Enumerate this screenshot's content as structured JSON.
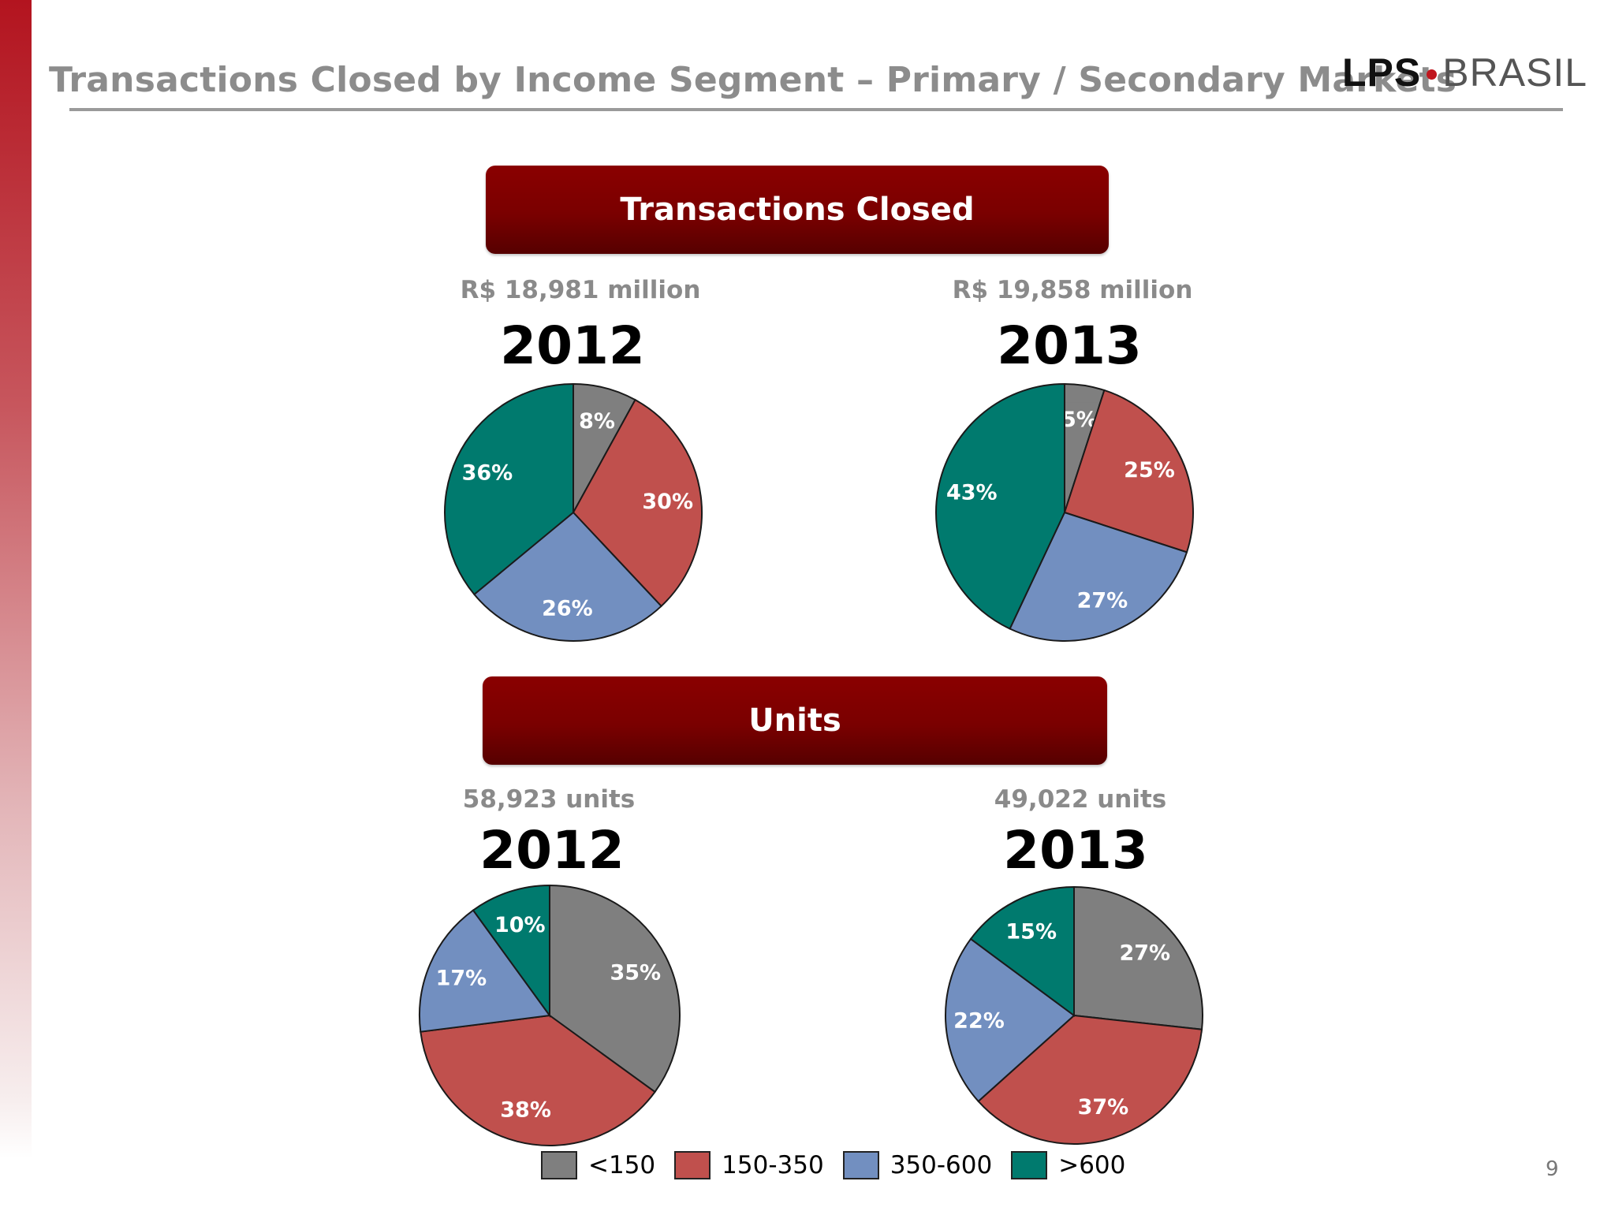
{
  "slide": {
    "title": "Transactions Closed by Income Segment – Primary / Secondary Markets",
    "logo": {
      "lps": "LPS",
      "brasil": "BRASIL",
      "accent": "#c0161e"
    },
    "page_number": "9"
  },
  "sections": {
    "transactions": {
      "banner": "Transactions Closed",
      "left_total": "R$ 18,981 million",
      "left_year": "2012",
      "right_total": "R$ 19,858 million",
      "right_year": "2013"
    },
    "units": {
      "banner": "Units",
      "left_total": "58,923 units",
      "left_year": "2012",
      "right_total": "49,022 units",
      "right_year": "2013"
    }
  },
  "legend": [
    {
      "label": "<150",
      "color": "#7f7f7f"
    },
    {
      "label": "150-350",
      "color": "#c0504d"
    },
    {
      "label": "350-600",
      "color": "#728fc0"
    },
    {
      "label": ">600",
      "color": "#007a6e"
    }
  ],
  "chart_data": [
    {
      "type": "pie",
      "title": "2012",
      "subtitle": "R$ 18,981 million",
      "categories": [
        "<150",
        "150-350",
        "350-600",
        ">600"
      ],
      "values": [
        8,
        30,
        26,
        36
      ],
      "labels": [
        "8%",
        "30%",
        "26%",
        "36%"
      ]
    },
    {
      "type": "pie",
      "title": "2013",
      "subtitle": "R$ 19,858 million",
      "categories": [
        "<150",
        "150-350",
        "350-600",
        ">600"
      ],
      "values": [
        5,
        25,
        27,
        43
      ],
      "labels": [
        "5%",
        "25%",
        "27%",
        "43%"
      ]
    },
    {
      "type": "pie",
      "title": "2012",
      "subtitle": "58,923 units",
      "categories": [
        "<150",
        "150-350",
        "350-600",
        ">600"
      ],
      "values": [
        35,
        38,
        17,
        10
      ],
      "labels": [
        "35%",
        "38%",
        "17%",
        "10%"
      ]
    },
    {
      "type": "pie",
      "title": "2013",
      "subtitle": "49,022 units",
      "categories": [
        "<150",
        "150-350",
        "350-600",
        ">600"
      ],
      "values": [
        27,
        37,
        22,
        15
      ],
      "labels": [
        "27%",
        "37%",
        "22%",
        "15%"
      ]
    }
  ]
}
